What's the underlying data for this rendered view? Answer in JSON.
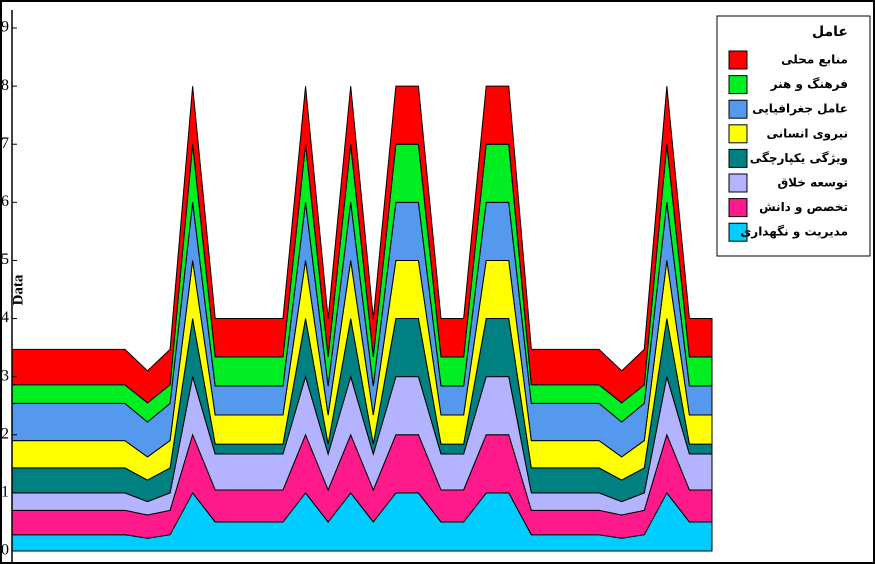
{
  "chart_data": {
    "type": "stacked_area",
    "y_label": "Data",
    "legend_title": "عامل",
    "ylim": [
      0,
      9
    ],
    "yticks": [
      0,
      1,
      2,
      3,
      4,
      5,
      6,
      7,
      8,
      9
    ],
    "legend": "right",
    "series": [
      {
        "name": "مدیریت و نگهداری",
        "color": "#00ccff",
        "values": [
          0.28,
          0.28,
          0.28,
          0.28,
          0.28,
          0.28,
          0.22,
          0.28,
          1,
          0.5,
          0.5,
          0.5,
          0.5,
          1,
          0.5,
          1,
          0.5,
          1,
          1,
          0.5,
          0.5,
          1,
          1,
          0.28,
          0.28,
          0.28,
          0.28,
          0.22,
          0.28,
          1,
          0.5,
          0.5
        ]
      },
      {
        "name": "تخصص و دانش",
        "color": "#ff1a8c",
        "values": [
          0.42,
          0.42,
          0.42,
          0.42,
          0.42,
          0.42,
          0.4,
          0.42,
          1,
          0.55,
          0.55,
          0.55,
          0.55,
          1,
          0.55,
          1,
          0.55,
          1,
          1,
          0.55,
          0.55,
          1,
          1,
          0.42,
          0.42,
          0.42,
          0.42,
          0.4,
          0.42,
          1,
          0.55,
          0.55
        ]
      },
      {
        "name": "توسعه خلاق",
        "color": "#b3b3ff",
        "values": [
          0.3,
          0.3,
          0.3,
          0.3,
          0.3,
          0.3,
          0.23,
          0.3,
          1,
          0.62,
          0.62,
          0.62,
          0.62,
          1,
          0.62,
          1,
          0.62,
          1,
          1,
          0.62,
          0.62,
          1,
          1,
          0.3,
          0.3,
          0.3,
          0.3,
          0.23,
          0.3,
          1,
          0.62,
          0.62
        ]
      },
      {
        "name": "ویژگی یکپارچگی",
        "color": "#008080",
        "values": [
          0.43,
          0.43,
          0.43,
          0.43,
          0.43,
          0.43,
          0.37,
          0.43,
          1,
          0.17,
          0.17,
          0.17,
          0.17,
          1,
          0.17,
          1,
          0.17,
          1,
          1,
          0.17,
          0.17,
          1,
          1,
          0.43,
          0.43,
          0.43,
          0.43,
          0.37,
          0.43,
          1,
          0.17,
          0.17
        ]
      },
      {
        "name": "نیروی انسانی",
        "color": "#ffff00",
        "values": [
          0.47,
          0.47,
          0.47,
          0.47,
          0.47,
          0.47,
          0.4,
          0.47,
          1,
          0.5,
          0.5,
          0.5,
          0.5,
          1,
          0.5,
          1,
          0.5,
          1,
          1,
          0.5,
          0.5,
          1,
          1,
          0.47,
          0.47,
          0.47,
          0.47,
          0.4,
          0.47,
          1,
          0.5,
          0.5
        ]
      },
      {
        "name": "عامل جغرافیایی",
        "color": "#5599ee",
        "values": [
          0.64,
          0.64,
          0.64,
          0.64,
          0.64,
          0.64,
          0.6,
          0.64,
          1,
          0.5,
          0.5,
          0.5,
          0.5,
          1,
          0.5,
          1,
          0.5,
          1,
          1,
          0.5,
          0.5,
          1,
          1,
          0.64,
          0.64,
          0.64,
          0.64,
          0.6,
          0.64,
          1,
          0.5,
          0.5
        ]
      },
      {
        "name": "فرهنگ و هنر",
        "color": "#00ee22",
        "values": [
          0.32,
          0.32,
          0.32,
          0.32,
          0.32,
          0.32,
          0.33,
          0.32,
          1,
          0.5,
          0.5,
          0.5,
          0.5,
          1,
          0.5,
          1,
          0.5,
          1,
          1,
          0.5,
          0.5,
          1,
          1,
          0.32,
          0.32,
          0.32,
          0.32,
          0.33,
          0.32,
          1,
          0.5,
          0.5
        ]
      },
      {
        "name": "منابع محلی",
        "color": "#ff0000",
        "values": [
          0.61,
          0.61,
          0.61,
          0.61,
          0.61,
          0.61,
          0.55,
          0.61,
          1,
          0.66,
          0.66,
          0.66,
          0.66,
          1,
          0.66,
          1,
          0.66,
          1,
          1,
          0.66,
          0.66,
          1,
          1,
          0.61,
          0.61,
          0.61,
          0.61,
          0.55,
          0.61,
          1,
          0.66,
          0.66
        ]
      }
    ]
  }
}
